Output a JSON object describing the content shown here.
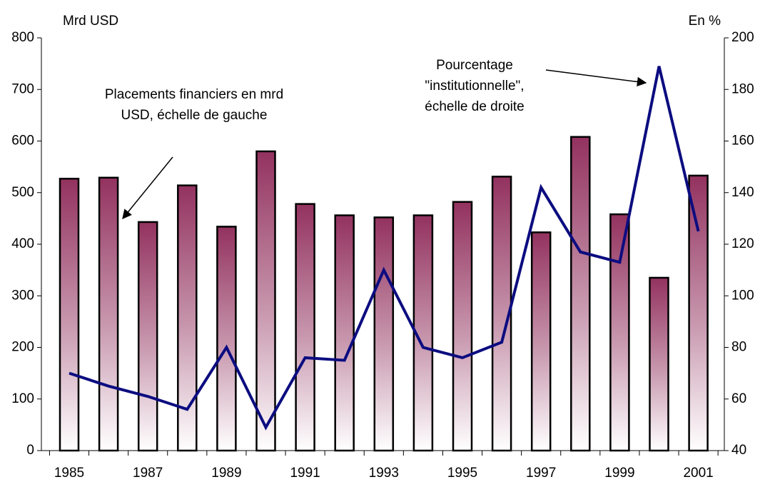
{
  "chart_data": {
    "type": "bar_line",
    "y_label": "Mrd USD",
    "y2_label": "En %",
    "annotations": [
      {
        "lines": [
          "Placements financiers en mrd",
          "USD, échelle de gauche"
        ]
      },
      {
        "lines": [
          "Pourcentage",
          "\"institutionnelle\",",
          "échelle de droite"
        ]
      }
    ],
    "categories": [
      "1985",
      null,
      "1987",
      null,
      "1989",
      null,
      "1991",
      null,
      "1993",
      null,
      "1995",
      null,
      "1997",
      null,
      "1999",
      null,
      "2001"
    ],
    "series": [
      {
        "type": "bar",
        "color": "#93325f",
        "values": [
          527,
          529,
          443,
          514,
          434,
          580,
          478,
          456,
          452,
          456,
          482,
          531,
          423,
          608,
          458,
          335,
          533
        ]
      },
      {
        "type": "line",
        "axis": "y2",
        "color": "#0c0c80",
        "values": [
          70,
          65,
          61,
          56,
          80,
          49,
          76,
          75,
          110,
          80,
          76,
          82,
          142,
          117,
          113,
          189,
          125
        ]
      }
    ],
    "ylim": [
      0,
      800
    ],
    "yticks": [
      0,
      100,
      200,
      300,
      400,
      500,
      600,
      700,
      800
    ],
    "y2lim": [
      40,
      200
    ],
    "y2ticks": [
      40,
      60,
      80,
      100,
      120,
      140,
      160,
      180,
      200
    ]
  }
}
